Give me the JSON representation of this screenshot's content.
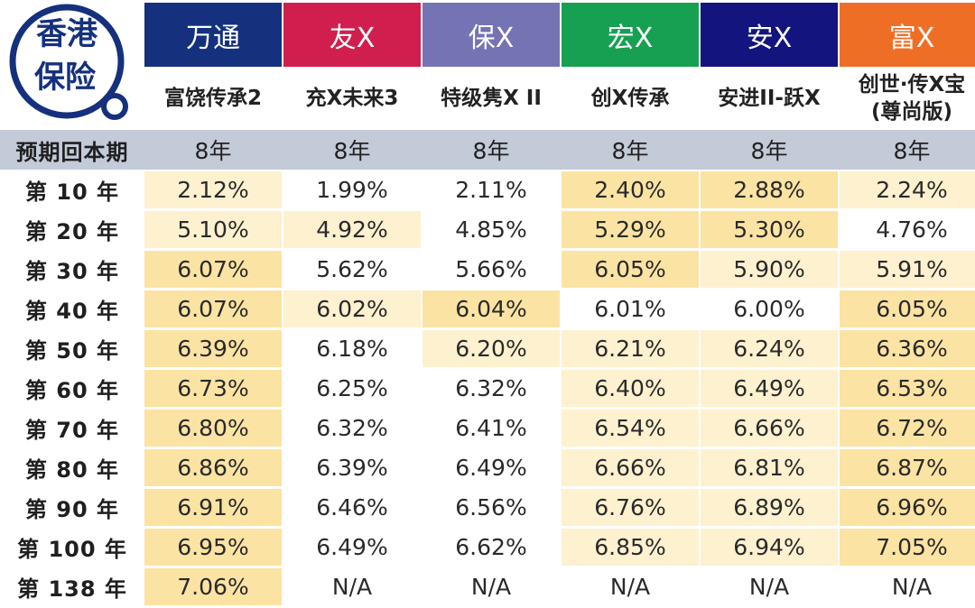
{
  "logo": {
    "line1": "香港",
    "line2": "保险"
  },
  "colors": {
    "company_bg": [
      "#15317e",
      "#d01f4e",
      "#7474b4",
      "#17a052",
      "#14147e",
      "#ef6e26"
    ],
    "period_band": "#c3cad8",
    "heat_levels": [
      "#ffffff",
      "#fdf1cf",
      "#fbe3a3",
      "#fad98a"
    ]
  },
  "companies": [
    "万通",
    "友X",
    "保X",
    "宏X",
    "安X",
    "富X"
  ],
  "products": [
    [
      "富饶传承2"
    ],
    [
      "充X未来3"
    ],
    [
      "特级隽X II"
    ],
    [
      "创X传承"
    ],
    [
      "安进II-跃X"
    ],
    [
      "创世·传X宝",
      "(尊尚版)"
    ]
  ],
  "period": {
    "label": "预期回本期",
    "values": [
      "8年",
      "8年",
      "8年",
      "8年",
      "8年",
      "8年"
    ]
  },
  "rows": [
    {
      "label": "第 10 年",
      "values": [
        "2.12%",
        "1.99%",
        "2.11%",
        "2.40%",
        "2.88%",
        "2.24%"
      ],
      "heat": [
        1,
        0,
        0,
        2,
        2,
        1
      ]
    },
    {
      "label": "第 20 年",
      "values": [
        "5.10%",
        "4.92%",
        "4.85%",
        "5.29%",
        "5.30%",
        "4.76%"
      ],
      "heat": [
        1,
        1,
        0,
        2,
        2,
        0
      ]
    },
    {
      "label": "第 30 年",
      "values": [
        "6.07%",
        "5.62%",
        "5.66%",
        "6.05%",
        "5.90%",
        "5.91%"
      ],
      "heat": [
        2,
        0,
        0,
        2,
        1,
        1
      ]
    },
    {
      "label": "第 40 年",
      "values": [
        "6.07%",
        "6.02%",
        "6.04%",
        "6.01%",
        "6.00%",
        "6.05%"
      ],
      "heat": [
        2,
        1,
        2,
        0,
        0,
        2
      ]
    },
    {
      "label": "第 50 年",
      "values": [
        "6.39%",
        "6.18%",
        "6.20%",
        "6.21%",
        "6.24%",
        "6.36%"
      ],
      "heat": [
        2,
        0,
        1,
        1,
        1,
        2
      ]
    },
    {
      "label": "第 60 年",
      "values": [
        "6.73%",
        "6.25%",
        "6.32%",
        "6.40%",
        "6.49%",
        "6.53%"
      ],
      "heat": [
        2,
        0,
        0,
        1,
        1,
        2
      ]
    },
    {
      "label": "第 70 年",
      "values": [
        "6.80%",
        "6.32%",
        "6.41%",
        "6.54%",
        "6.66%",
        "6.72%"
      ],
      "heat": [
        2,
        0,
        0,
        1,
        1,
        2
      ]
    },
    {
      "label": "第 80 年",
      "values": [
        "6.86%",
        "6.39%",
        "6.49%",
        "6.66%",
        "6.81%",
        "6.87%"
      ],
      "heat": [
        2,
        0,
        0,
        1,
        1,
        2
      ]
    },
    {
      "label": "第 90 年",
      "values": [
        "6.91%",
        "6.46%",
        "6.56%",
        "6.76%",
        "6.89%",
        "6.96%"
      ],
      "heat": [
        2,
        0,
        0,
        1,
        1,
        2
      ]
    },
    {
      "label": "第 100 年",
      "values": [
        "6.95%",
        "6.49%",
        "6.62%",
        "6.85%",
        "6.94%",
        "7.05%"
      ],
      "heat": [
        2,
        0,
        0,
        1,
        1,
        2
      ]
    },
    {
      "label": "第 138 年",
      "values": [
        "7.06%",
        "N/A",
        "N/A",
        "N/A",
        "N/A",
        "N/A"
      ],
      "heat": [
        2,
        0,
        0,
        0,
        0,
        0
      ]
    }
  ]
}
